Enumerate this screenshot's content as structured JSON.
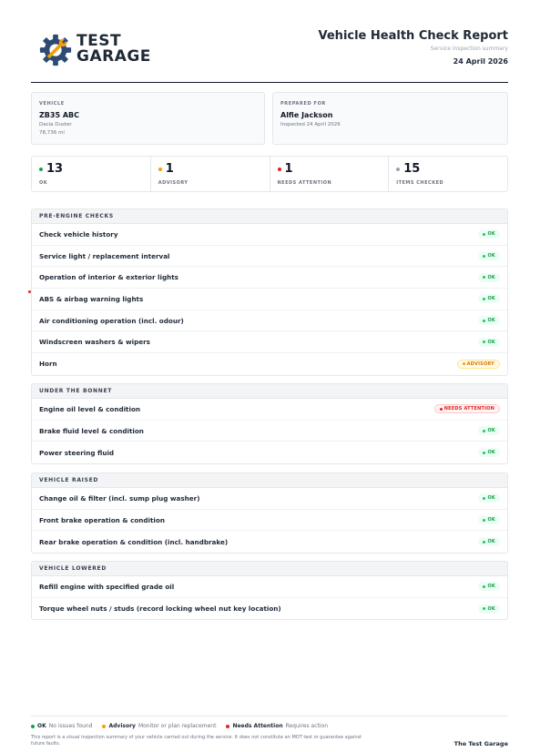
{
  "brand": {
    "logo_line1": "TEST",
    "logo_line2": "GARAGE",
    "footer_name": "The Test Garage",
    "gear_color": "#2d4a73",
    "wrench_color": "#f59e0b"
  },
  "report": {
    "title": "Vehicle Health Check Report",
    "subtitle": "Service inspection summary",
    "date": "24 April 2026"
  },
  "vehicle": {
    "label": "VEHICLE",
    "registration": "ZB35 ABC",
    "model": "Dacia Duster",
    "mileage": "78,736 mi"
  },
  "prepared_for": {
    "label": "PREPARED FOR",
    "name": "Alfie Jackson",
    "inspected": "Inspected 24 April 2026"
  },
  "stats": [
    {
      "value": "13",
      "label": "OK",
      "color": "#16a34a"
    },
    {
      "value": "1",
      "label": "ADVISORY",
      "color": "#f59e0b"
    },
    {
      "value": "1",
      "label": "NEEDS ATTENTION",
      "color": "#dc2626"
    },
    {
      "value": "15",
      "label": "ITEMS CHECKED",
      "color": "#9ca3af"
    }
  ],
  "status_labels": {
    "ok": "OK",
    "advisory": "ADVISORY",
    "attention": "NEEDS ATTENTION"
  },
  "sections": [
    {
      "title": "PRE-ENGINE CHECKS",
      "items": [
        {
          "label": "Check vehicle history",
          "status": "ok"
        },
        {
          "label": "Service light / replacement interval",
          "status": "ok"
        },
        {
          "label": "Operation of interior & exterior lights",
          "status": "ok"
        },
        {
          "label": "ABS & airbag warning lights",
          "status": "ok"
        },
        {
          "label": "Air conditioning operation (incl. odour)",
          "status": "ok"
        },
        {
          "label": "Windscreen washers & wipers",
          "status": "ok"
        },
        {
          "label": "Horn",
          "status": "advisory"
        }
      ]
    },
    {
      "title": "UNDER THE BONNET",
      "items": [
        {
          "label": "Engine oil level & condition",
          "status": "attention"
        },
        {
          "label": "Brake fluid level & condition",
          "status": "ok"
        },
        {
          "label": "Power steering fluid",
          "status": "ok"
        }
      ]
    },
    {
      "title": "VEHICLE RAISED",
      "items": [
        {
          "label": "Change oil & filter (incl. sump plug washer)",
          "status": "ok"
        },
        {
          "label": "Front brake operation & condition",
          "status": "ok"
        },
        {
          "label": "Rear brake operation & condition (incl. handbrake)",
          "status": "ok"
        }
      ]
    },
    {
      "title": "VEHICLE LOWERED",
      "items": [
        {
          "label": "Refill engine with specified grade oil",
          "status": "ok"
        },
        {
          "label": "Torque wheel nuts / studs (record locking wheel nut key location)",
          "status": "ok"
        }
      ]
    }
  ],
  "legend": [
    {
      "title": "OK",
      "desc": "No issues found",
      "color": "#16a34a"
    },
    {
      "title": "Advisory",
      "desc": "Monitor or plan replacement",
      "color": "#f59e0b"
    },
    {
      "title": "Needs Attention",
      "desc": "Requires action",
      "color": "#dc2626"
    }
  ],
  "disclaimer": "This report is a visual inspection summary of your vehicle carried out during the service. It does not constitute an MOT test or guarantee against future faults."
}
